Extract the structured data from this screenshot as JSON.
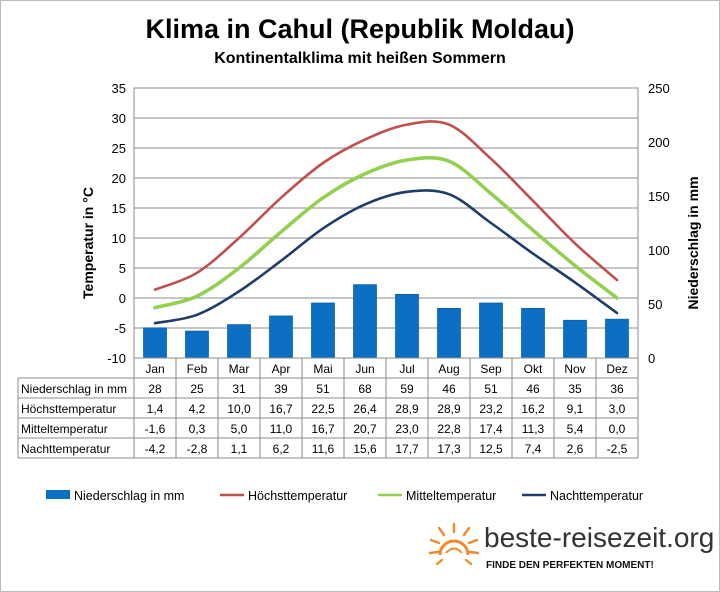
{
  "chart_data": {
    "type": "bar+line",
    "title": "Klima in Cahul (Republik Moldau)",
    "subtitle": "Kontinentalklima mit heißen Sommern",
    "ylabel_left": "Temperatur in °C",
    "ylabel_right": "Niederschlag in mm",
    "ylim_left": [
      -10,
      35
    ],
    "ylim_right": [
      0,
      250
    ],
    "yticks_left": [
      "35",
      "30",
      "25",
      "20",
      "15",
      "10",
      "5",
      "0",
      "-5",
      "-10"
    ],
    "yticks_right": [
      "250",
      "200",
      "150",
      "100",
      "50",
      "0"
    ],
    "categories": [
      "Jan",
      "Feb",
      "Mar",
      "Apr",
      "Mai",
      "Jun",
      "Jul",
      "Aug",
      "Sep",
      "Okt",
      "Nov",
      "Dez"
    ],
    "series": [
      {
        "name": "Niederschlag in mm",
        "type": "bar",
        "axis": "right",
        "color": "#0a6fc2",
        "values": [
          28,
          25,
          31,
          39,
          51,
          68,
          59,
          46,
          51,
          46,
          35,
          36
        ],
        "labels": [
          "28",
          "25",
          "31",
          "39",
          "51",
          "68",
          "59",
          "46",
          "51",
          "46",
          "35",
          "36"
        ]
      },
      {
        "name": "Höchsttemperatur",
        "type": "line",
        "axis": "left",
        "color": "#c0504d",
        "values": [
          1.4,
          4.2,
          10.0,
          16.7,
          22.5,
          26.4,
          28.9,
          28.9,
          23.2,
          16.2,
          9.1,
          3.0
        ],
        "labels": [
          "1,4",
          "4,2",
          "10,0",
          "16,7",
          "22,5",
          "26,4",
          "28,9",
          "28,9",
          "23,2",
          "16,2",
          "9,1",
          "3,0"
        ]
      },
      {
        "name": "Mitteltemperatur",
        "type": "line",
        "axis": "left",
        "color": "#92d050",
        "values": [
          -1.6,
          0.3,
          5.0,
          11.0,
          16.7,
          20.7,
          23.0,
          22.8,
          17.4,
          11.3,
          5.4,
          0.0
        ],
        "labels": [
          "-1,6",
          "0,3",
          "5,0",
          "11,0",
          "16,7",
          "20,7",
          "23,0",
          "22,8",
          "17,4",
          "11,3",
          "5,4",
          "0,0"
        ]
      },
      {
        "name": "Nachttemperatur",
        "type": "line",
        "axis": "left",
        "color": "#1f3d6b",
        "values": [
          -4.2,
          -2.8,
          1.1,
          6.2,
          11.6,
          15.6,
          17.7,
          17.3,
          12.5,
          7.4,
          2.6,
          -2.5
        ],
        "labels": [
          "-4,2",
          "-2,8",
          "1,1",
          "6,2",
          "11,6",
          "15,6",
          "17,7",
          "17,3",
          "12,5",
          "7,4",
          "2,6",
          "-2,5"
        ]
      }
    ],
    "grid": true,
    "legend_position": "bottom"
  },
  "logo": {
    "name": "beste-reisezeit.org",
    "tagline": "FINDE DEN PERFEKTEN MOMENT!"
  }
}
